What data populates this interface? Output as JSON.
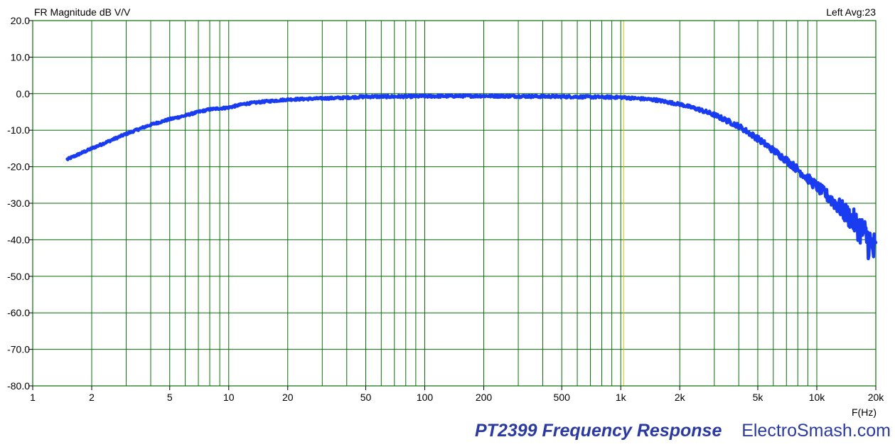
{
  "chart_data": {
    "type": "line",
    "title": "FR Magnitude dB V/V",
    "info": "Left  Avg:23",
    "xlabel": "F(Hz)",
    "ylabel": "",
    "x_scale": "log",
    "xlim": [
      1,
      20000
    ],
    "ylim": [
      -80,
      20
    ],
    "grid": true,
    "x_ticks": [
      {
        "value": 1,
        "label": "1"
      },
      {
        "value": 2,
        "label": "2"
      },
      {
        "value": 5,
        "label": "5"
      },
      {
        "value": 10,
        "label": "10"
      },
      {
        "value": 20,
        "label": "20"
      },
      {
        "value": 50,
        "label": "50"
      },
      {
        "value": 100,
        "label": "100"
      },
      {
        "value": 200,
        "label": "200"
      },
      {
        "value": 500,
        "label": "500"
      },
      {
        "value": 1000,
        "label": "1k"
      },
      {
        "value": 2000,
        "label": "2k"
      },
      {
        "value": 5000,
        "label": "5k"
      },
      {
        "value": 10000,
        "label": "10k"
      },
      {
        "value": 20000,
        "label": "20k"
      }
    ],
    "y_ticks": [
      {
        "value": 20,
        "label": "20.0"
      },
      {
        "value": 10,
        "label": "10.0"
      },
      {
        "value": 0,
        "label": "0.0"
      },
      {
        "value": -10,
        "label": "-10.0"
      },
      {
        "value": -20,
        "label": "-20.0"
      },
      {
        "value": -30,
        "label": "-30.0"
      },
      {
        "value": -40,
        "label": "-40.0"
      },
      {
        "value": -50,
        "label": "-50.0"
      },
      {
        "value": -60,
        "label": "-60.0"
      },
      {
        "value": -70,
        "label": "-70.0"
      },
      {
        "value": -80,
        "label": "-80.0"
      }
    ],
    "marker_line": {
      "x": 1000,
      "color": "#c8c800"
    },
    "colors": {
      "grid": "#0a6e0a",
      "series": "#1a3cf0",
      "axis": "#000000"
    },
    "series": [
      {
        "x": [
          1.5,
          2,
          3,
          4,
          5,
          6,
          7,
          8,
          10,
          12,
          15,
          20,
          30,
          40,
          50,
          70,
          100,
          200,
          300,
          500,
          700,
          1000,
          1200,
          1500,
          2000,
          2500,
          3000,
          4000,
          5000,
          6000,
          7000,
          8000,
          9000,
          10000,
          11000,
          12000,
          13000,
          14000,
          15000,
          16000,
          17000,
          18000,
          19000,
          20000
        ],
        "y": [
          -18,
          -15,
          -11,
          -8.5,
          -7,
          -6,
          -5,
          -4.3,
          -3.8,
          -2.8,
          -2.2,
          -1.6,
          -1.3,
          -1.1,
          -0.8,
          -0.8,
          -0.7,
          -0.6,
          -0.7,
          -0.8,
          -0.9,
          -1.0,
          -1.3,
          -1.7,
          -2.9,
          -4.3,
          -5.8,
          -8.9,
          -12.3,
          -15.5,
          -18.2,
          -20.8,
          -23.2,
          -25.4,
          -27.4,
          -29.2,
          -31,
          -32.7,
          -34.3,
          -35.9,
          -37.6,
          -39.5,
          -41.7,
          -44.1
        ],
        "noise": [
          0.3,
          0.3,
          0.3,
          0.3,
          0.3,
          0.3,
          0.3,
          0.3,
          0.3,
          0.3,
          0.3,
          0.3,
          0.3,
          0.3,
          0.35,
          0.35,
          0.35,
          0.35,
          0.35,
          0.35,
          0.35,
          0.35,
          0.35,
          0.4,
          0.4,
          0.5,
          0.6,
          0.7,
          0.8,
          0.9,
          1.0,
          1.1,
          1.3,
          1.5,
          1.7,
          2.0,
          2.4,
          2.8,
          3.2,
          3.8,
          4.4,
          5.0,
          5.5,
          6.0
        ]
      }
    ]
  },
  "caption": "PT2399 Frequency Response",
  "brand": "ElectroSmash.com"
}
